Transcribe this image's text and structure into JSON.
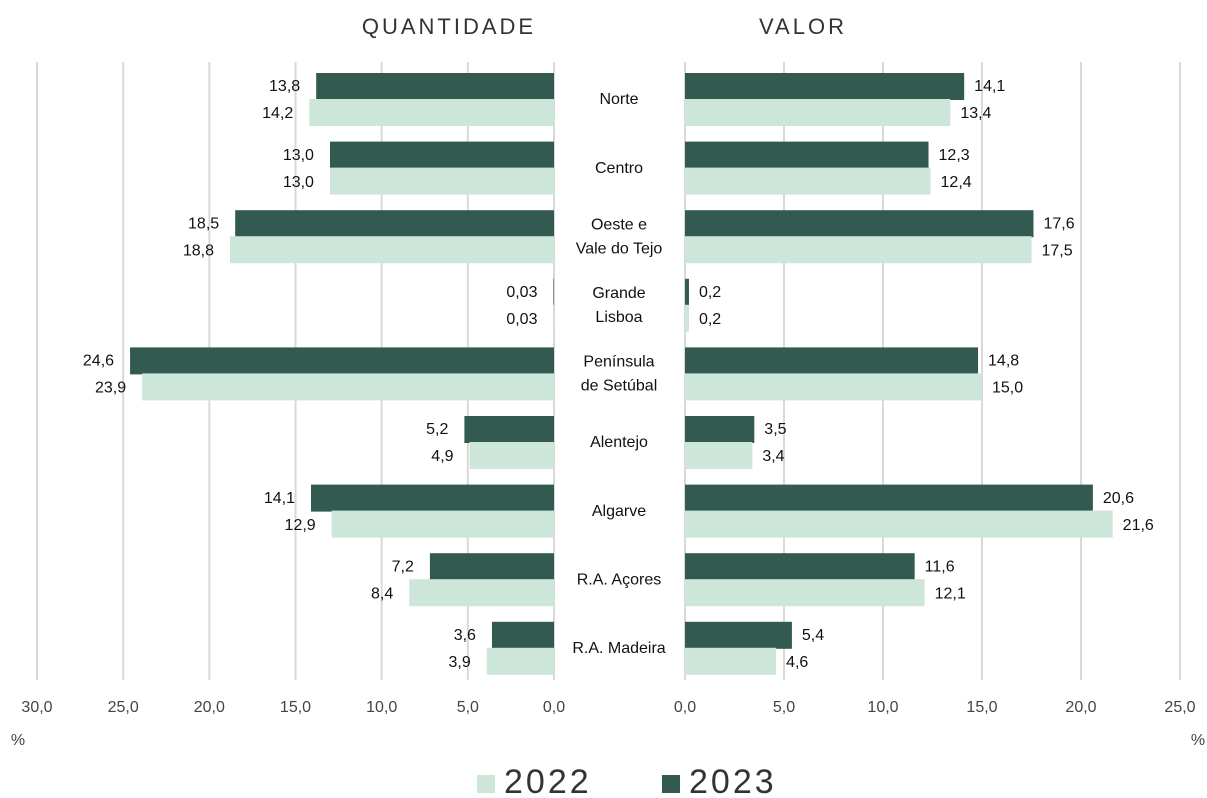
{
  "chart_data": [
    {
      "type": "bar",
      "orientation": "horizontal",
      "title": "QUANTIDADE",
      "x_label": "%",
      "categories": [
        "Norte",
        "Centro",
        [
          "Oeste e",
          "Vale do Tejo"
        ],
        [
          "Grande",
          "Lisboa"
        ],
        [
          "Península",
          "de Setúbal"
        ],
        "Alentejo",
        "Algarve",
        "R.A. Açores",
        "R.A. Madeira"
      ],
      "series": [
        {
          "name": "2023",
          "color": "#335a50",
          "values": [
            13.8,
            13.0,
            18.5,
            0.03,
            24.6,
            5.2,
            14.1,
            7.2,
            3.6
          ],
          "value_labels": [
            "13,8",
            "13,0",
            "18,5",
            "0,03",
            "24,6",
            "5,2",
            "14,1",
            "7,2",
            "3,6"
          ]
        },
        {
          "name": "2022",
          "color": "#cce6da",
          "values": [
            14.2,
            13.0,
            18.8,
            0.03,
            23.9,
            4.9,
            12.9,
            8.4,
            3.9
          ],
          "value_labels": [
            "14,2",
            "13,0",
            "18,8",
            "0,03",
            "23,9",
            "4,9",
            "12,9",
            "8,4",
            "3,9"
          ]
        }
      ],
      "xlim": [
        30,
        0
      ],
      "grid": true,
      "xticks": [
        {
          "value": 30,
          "label": "30,0"
        },
        {
          "value": 25,
          "label": "25,0"
        },
        {
          "value": 20,
          "label": "20,0"
        },
        {
          "value": 15,
          "label": "15,0"
        },
        {
          "value": 10,
          "label": "10,0"
        },
        {
          "value": 5,
          "label": "5,0"
        },
        {
          "value": 0,
          "label": "0,0"
        }
      ]
    },
    {
      "type": "bar",
      "orientation": "horizontal",
      "title": "VALOR",
      "x_label": "%",
      "series": [
        {
          "color": "#335a50",
          "values": [
            14.1,
            12.3,
            17.6,
            0.2,
            14.8,
            3.5,
            20.6,
            11.6,
            5.4
          ],
          "value_labels": [
            "14,1",
            "12,3",
            "17,6",
            "0,2",
            "14,8",
            "3,5",
            "20,6",
            "11,6",
            "5,4"
          ]
        },
        {
          "color": "#cce6da",
          "values": [
            13.4,
            12.4,
            17.5,
            0.2,
            15.0,
            3.4,
            21.6,
            12.1,
            4.6
          ],
          "value_labels": [
            "13,4",
            "12,4",
            "17,5",
            "0,2",
            "15,0",
            "3,4",
            "21,6",
            "12,1",
            "4,6"
          ]
        }
      ],
      "xlim": [
        0,
        25
      ],
      "grid": true,
      "xticks": [
        {
          "value": 0,
          "label": "0,0"
        },
        {
          "value": 5,
          "label": "5,0"
        },
        {
          "value": 10,
          "label": "10,0"
        },
        {
          "value": 15,
          "label": "15,0"
        },
        {
          "value": 20,
          "label": "20,0"
        },
        {
          "value": 25,
          "label": "25,0"
        }
      ]
    }
  ]
}
